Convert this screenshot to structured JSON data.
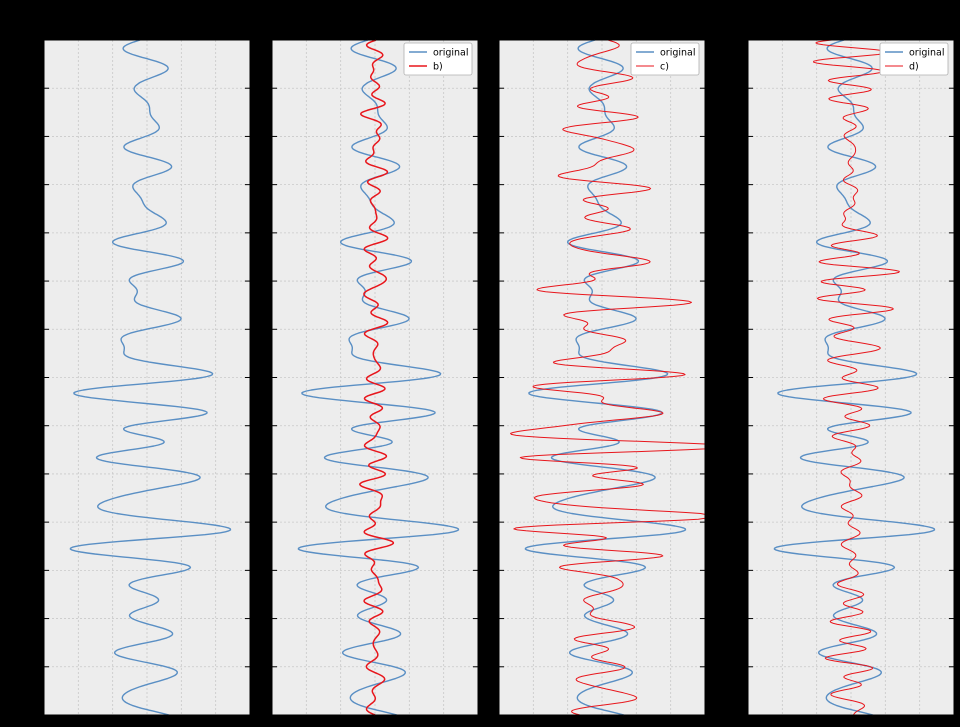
{
  "figure": {
    "background": "#000000",
    "axes_background": "#ededed",
    "grid_color": "#c9c9c9"
  },
  "chart_data": [
    {
      "type": "line",
      "panel": "a",
      "orientation": "vertical-trace",
      "xlim": [
        -1,
        1
      ],
      "ylim": [
        0,
        700
      ],
      "grid": true,
      "legend": null,
      "series": [
        {
          "name": "",
          "role": "original",
          "color": "#5a8fc4",
          "stroke": 1.4,
          "seed": 11,
          "amplitude": [
            0.22,
            0.18,
            0.3,
            0.35,
            0.3,
            0.45,
            0.55,
            0.7,
            0.55,
            0.95,
            0.8,
            1.0,
            0.45,
            0.3,
            0.4,
            0.45
          ]
        }
      ]
    },
    {
      "type": "line",
      "panel": "b",
      "orientation": "vertical-trace",
      "xlim": [
        -1,
        1
      ],
      "ylim": [
        0,
        700
      ],
      "grid": true,
      "legend": {
        "placement": "top-right",
        "entries": [
          "original",
          "b)"
        ]
      },
      "series": [
        {
          "name": "original",
          "role": "original",
          "color": "#5a8fc4",
          "stroke": 1.4,
          "seed": 11,
          "amplitude": [
            0.22,
            0.18,
            0.3,
            0.35,
            0.3,
            0.45,
            0.55,
            0.7,
            0.55,
            0.95,
            0.8,
            1.0,
            0.45,
            0.3,
            0.4,
            0.45
          ]
        },
        {
          "name": "b)",
          "role": "filtered",
          "color": "#e8161c",
          "stroke": 1.5,
          "seed": 27,
          "amplitude": [
            0.1,
            0.1,
            0.12,
            0.12,
            0.14,
            0.15,
            0.15,
            0.15,
            0.15,
            0.16,
            0.15,
            0.15,
            0.14,
            0.12,
            0.12,
            0.12
          ]
        }
      ]
    },
    {
      "type": "line",
      "panel": "c",
      "orientation": "vertical-trace",
      "xlim": [
        -1,
        1
      ],
      "ylim": [
        0,
        700
      ],
      "grid": true,
      "legend": {
        "placement": "top-right",
        "entries": [
          "original",
          "c)"
        ]
      },
      "series": [
        {
          "name": "original",
          "role": "original",
          "color": "#5a8fc4",
          "stroke": 1.4,
          "seed": 11,
          "amplitude": [
            0.22,
            0.18,
            0.3,
            0.35,
            0.3,
            0.45,
            0.55,
            0.7,
            0.55,
            0.95,
            0.8,
            1.0,
            0.45,
            0.3,
            0.4,
            0.45
          ]
        },
        {
          "name": "c)",
          "role": "filtered",
          "color": "#e8161c",
          "stroke": 1.0,
          "seed": 43,
          "amplitude": [
            0.3,
            0.3,
            0.5,
            0.45,
            0.35,
            0.6,
            0.7,
            0.8,
            0.7,
            1.25,
            0.95,
            1.1,
            0.35,
            0.25,
            0.45,
            0.45
          ]
        }
      ]
    },
    {
      "type": "line",
      "panel": "d",
      "orientation": "vertical-trace",
      "xlim": [
        -1,
        1
      ],
      "ylim": [
        0,
        700
      ],
      "grid": true,
      "legend": {
        "placement": "top-right",
        "entries": [
          "original",
          "d)"
        ]
      },
      "series": [
        {
          "name": "original",
          "role": "original",
          "color": "#5a8fc4",
          "stroke": 1.4,
          "seed": 11,
          "amplitude": [
            0.22,
            0.18,
            0.3,
            0.35,
            0.3,
            0.45,
            0.55,
            0.7,
            0.55,
            0.95,
            0.8,
            1.0,
            0.45,
            0.3,
            0.4,
            0.45
          ]
        },
        {
          "name": "d)",
          "role": "filtered",
          "color": "#e8161c",
          "stroke": 1.0,
          "seed": 59,
          "amplitude": [
            0.45,
            0.35,
            0.3,
            0.35,
            0.45,
            0.45,
            0.35,
            0.3,
            0.25,
            0.2,
            0.2,
            0.18,
            0.2,
            0.2,
            0.22,
            0.2
          ]
        }
      ]
    }
  ]
}
